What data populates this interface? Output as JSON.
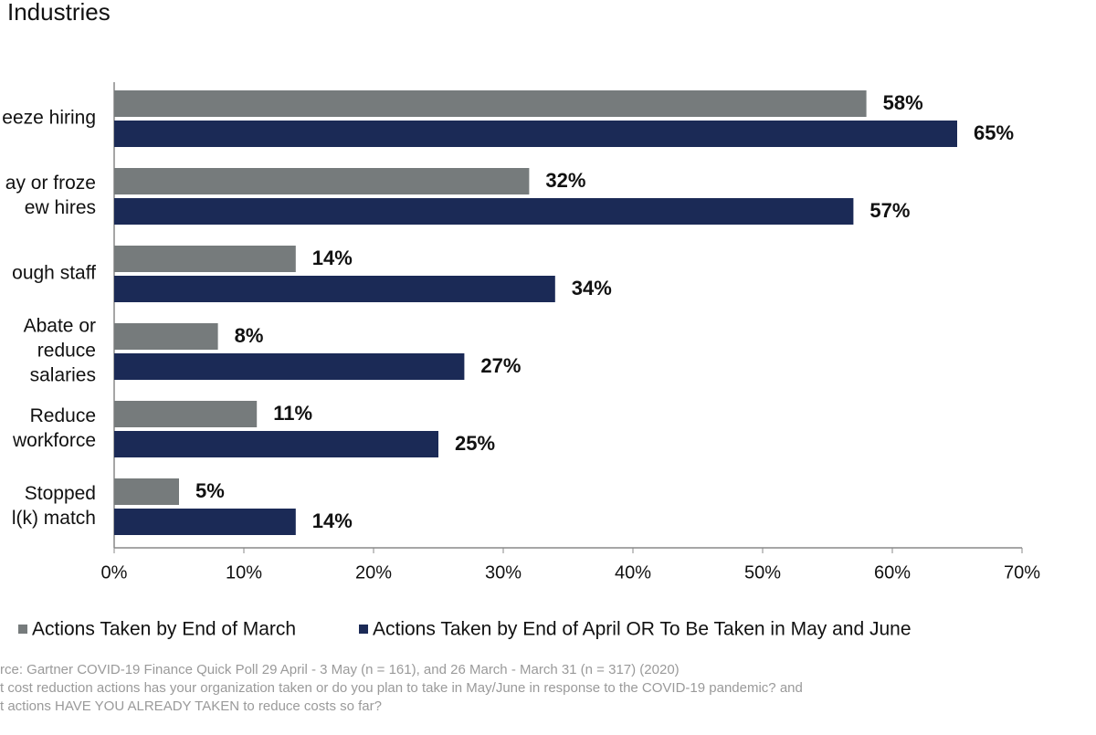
{
  "chart_data": {
    "type": "bar",
    "orientation": "horizontal",
    "title": "Industries",
    "categories": [
      [
        "eeze hiring"
      ],
      [
        "ay or froze",
        "ew hires"
      ],
      [
        "ough staff"
      ],
      [
        "Abate or",
        "reduce",
        "salaries"
      ],
      [
        "Reduce",
        "workforce"
      ],
      [
        "Stopped",
        "l(k) match"
      ]
    ],
    "series": [
      {
        "name": "Actions Taken by End of March",
        "color": "#767b7c",
        "values": [
          58,
          32,
          14,
          8,
          11,
          5
        ],
        "value_labels": [
          "58%",
          "32%",
          "14%",
          "8%",
          "11%",
          "5%"
        ]
      },
      {
        "name": "Actions Taken by End of April OR To Be Taken in May and June",
        "color": "#1b2a56",
        "values": [
          65,
          57,
          34,
          27,
          25,
          14
        ],
        "value_labels": [
          "65%",
          "57%",
          "34%",
          "27%",
          "25%",
          "14%"
        ]
      }
    ],
    "xlim": [
      0,
      70
    ],
    "xticks": [
      {
        "value": 0,
        "label": "0%"
      },
      {
        "value": 10,
        "label": "10%"
      },
      {
        "value": 20,
        "label": "20%"
      },
      {
        "value": 30,
        "label": "30%"
      },
      {
        "value": 40,
        "label": "40%"
      },
      {
        "value": 50,
        "label": "50%"
      },
      {
        "value": 60,
        "label": "60%"
      },
      {
        "value": 70,
        "label": "70%"
      }
    ],
    "legend": "bottom",
    "notes": [
      "rce: Gartner COVID-19 Finance Quick Poll 29 April - 3 May  (n = 161), and 26 March - March 31 (n = 317)  (2020)",
      "t cost reduction actions has your organization taken or do you plan to take in May/June  in response to the COVID-19 pandemic? and",
      "t actions HAVE YOU ALREADY TAKEN to reduce costs so far?"
    ]
  }
}
